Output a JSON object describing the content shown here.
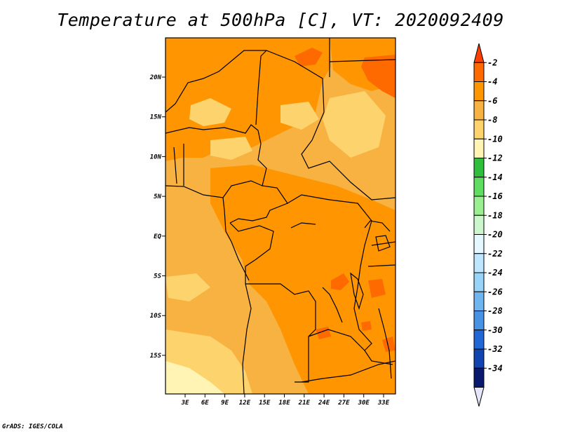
{
  "title": "Temperature at 500hPa [C], VT: 2020092409",
  "credit": "GrADS: IGES/COLA",
  "map": {
    "lon_labels": [
      "3E",
      "6E",
      "9E",
      "12E",
      "15E",
      "18E",
      "21E",
      "24E",
      "27E",
      "30E",
      "33E"
    ],
    "lat_labels": [
      "20N",
      "15N",
      "10N",
      "5N",
      "EQ",
      "5S",
      "10S",
      "15S"
    ],
    "field": "temperature_500hPa_celsius",
    "dominant_range": "-4 to -8",
    "warm_patches": "-2 to -4",
    "colors": {
      "background_field": "#f8b241",
      "frame": "#000000",
      "borders": "#000000"
    }
  },
  "colorbar": {
    "labels": [
      "-2",
      "-4",
      "-6",
      "-8",
      "-10",
      "-12",
      "-14",
      "-16",
      "-18",
      "-20",
      "-22",
      "-24",
      "-26",
      "-28",
      "-30",
      "-32",
      "-34"
    ],
    "colors": [
      "#ff4000",
      "#ff6a00",
      "#ff9500",
      "#f8b241",
      "#fdd36e",
      "#fff4b4",
      "#2fbf3c",
      "#5fdd60",
      "#9af090",
      "#ccf7cc",
      "#e5f8ff",
      "#bfe6ff",
      "#9ad3f8",
      "#6fb5f0",
      "#4693e6",
      "#2167d6",
      "#1044b0",
      "#091a6e",
      "#e6e6fa"
    ]
  }
}
